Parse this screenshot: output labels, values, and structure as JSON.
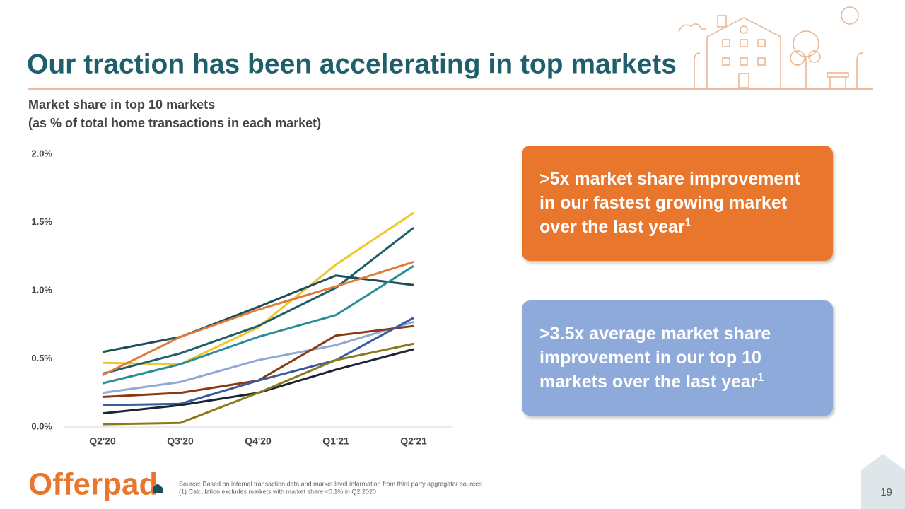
{
  "title": "Our traction has been accelerating in top markets",
  "chart_data": {
    "type": "line",
    "subtitle": [
      "Market share in top 10 markets",
      "(as % of total home transactions in each market)"
    ],
    "categories": [
      "Q2'20",
      "Q3'20",
      "Q4'20",
      "Q1'21",
      "Q2'21"
    ],
    "ylim": [
      0,
      2
    ],
    "yticks": [
      {
        "value": 0,
        "label": "0.0%"
      },
      {
        "value": 0.5,
        "label": "0.5%"
      },
      {
        "value": 1,
        "label": "1.0%"
      },
      {
        "value": 1.5,
        "label": "1.5%"
      },
      {
        "value": 2,
        "label": "2.0%"
      }
    ],
    "grid": false,
    "series": [
      {
        "color": "#f2c52a",
        "values": [
          0.47,
          0.46,
          0.73,
          1.19,
          1.57
        ]
      },
      {
        "color": "#1f5f6b",
        "values": [
          0.39,
          0.54,
          0.74,
          1.02,
          1.46
        ]
      },
      {
        "color": "#1b4f5c",
        "values": [
          0.55,
          0.66,
          0.88,
          1.11,
          1.04
        ]
      },
      {
        "color": "#e07b39",
        "values": [
          0.38,
          0.66,
          0.86,
          1.03,
          1.21
        ]
      },
      {
        "color": "#2a8c99",
        "values": [
          0.32,
          0.46,
          0.66,
          0.82,
          1.18
        ]
      },
      {
        "color": "#8fa9d4",
        "values": [
          0.25,
          0.33,
          0.49,
          0.6,
          0.77
        ]
      },
      {
        "color": "#8b3a0f",
        "values": [
          0.22,
          0.25,
          0.34,
          0.67,
          0.74
        ]
      },
      {
        "color": "#3a5ba0",
        "values": [
          0.16,
          0.17,
          0.34,
          0.49,
          0.8
        ]
      },
      {
        "color": "#1c2533",
        "values": [
          0.1,
          0.16,
          0.25,
          0.42,
          0.57
        ]
      },
      {
        "color": "#8c7a1a",
        "values": [
          0.02,
          0.03,
          0.25,
          0.49,
          0.61
        ]
      }
    ]
  },
  "callouts": [
    {
      "text": ">5x market share improvement in our fastest growing market over the last year",
      "superscript": "1"
    },
    {
      "text": ">3.5x average market share improvement in our top 10 markets over the last year",
      "superscript": "1"
    }
  ],
  "footnotes": [
    "Source: Based on internal transaction data and market level information from third party aggregator sources",
    "(1) Calculation excludes markets with market share <0.1% in Q2 2020"
  ],
  "logo": "Offerpad",
  "page_number": "19"
}
